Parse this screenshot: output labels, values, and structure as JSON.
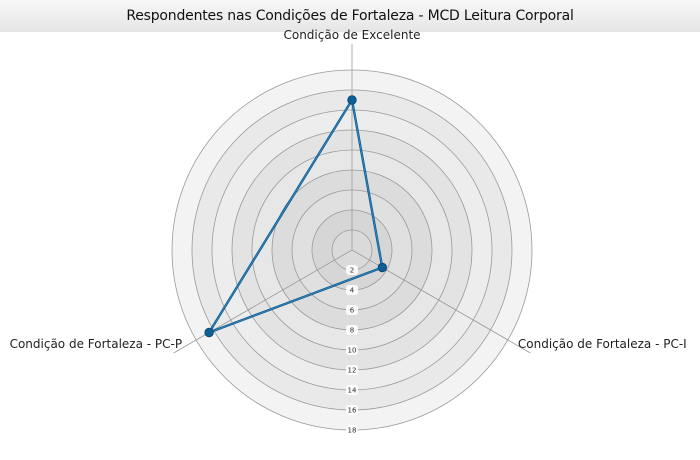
{
  "chart_data": {
    "type": "radar",
    "title": "Respondentes nas Condições de Fortaleza - MCD Leitura Corporal",
    "axes": [
      "Condição de Excelente",
      "Condição de Fortaleza - PC-I",
      "Condição de Fortaleza - PC-P"
    ],
    "r_range": [
      0,
      18
    ],
    "r_ticks": [
      "2",
      "4",
      "6",
      "8",
      "10",
      "12",
      "14",
      "16",
      "18"
    ],
    "series": [
      {
        "values": [
          15,
          3.5,
          16.5
        ],
        "color": "#0f5f97"
      }
    ],
    "colors": {
      "ring_outer": "#f3f3f3",
      "ring_inner": "#dadada",
      "gridline": "#9a9a9a",
      "series": "#0f5f97"
    }
  }
}
